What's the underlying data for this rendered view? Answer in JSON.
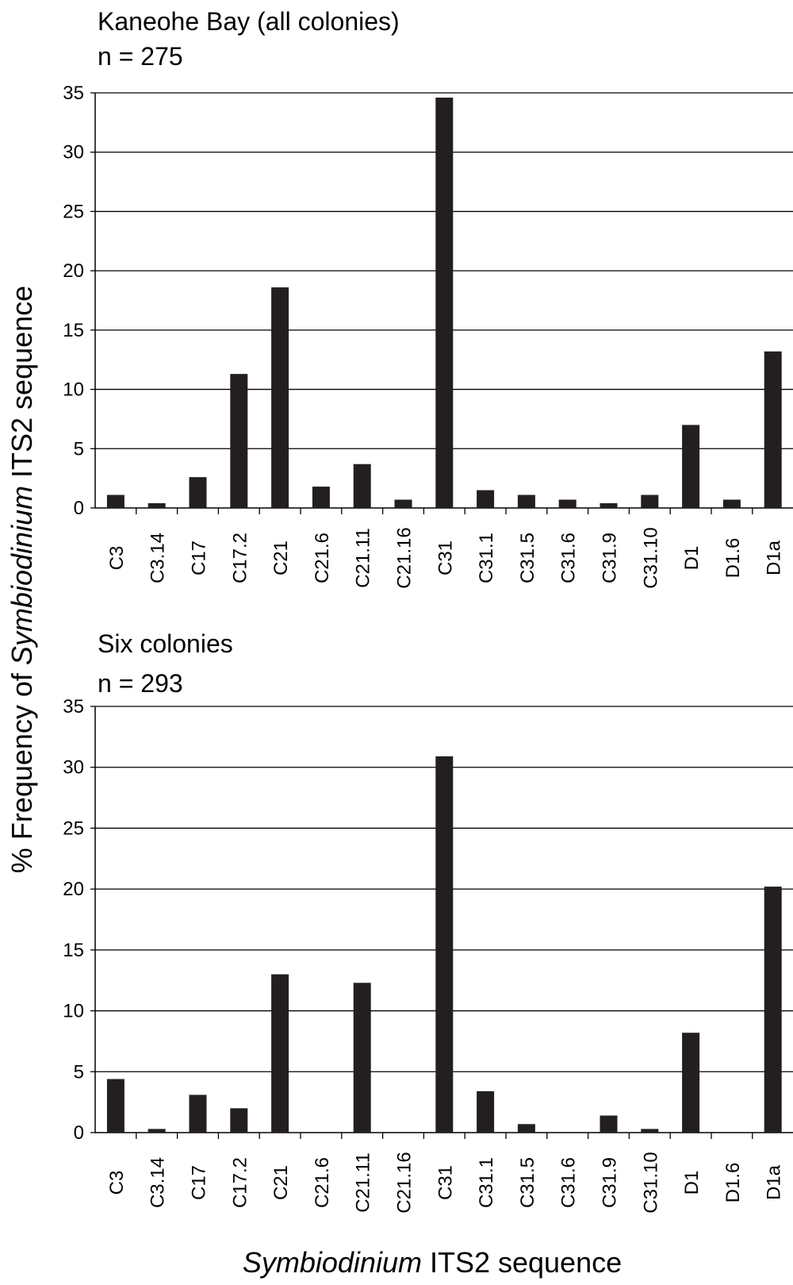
{
  "chart_data": [
    {
      "type": "bar",
      "title": "Kaneohe Bay (all colonies)",
      "subtitle": "n = 275",
      "categories": [
        "C3",
        "C3.14",
        "C17",
        "C17.2",
        "C21",
        "C21.6",
        "C21.11",
        "C21.16",
        "C31",
        "C31.1",
        "C31.5",
        "C31.6",
        "C31.9",
        "C31.10",
        "D1",
        "D1.6",
        "D1a"
      ],
      "values": [
        1.1,
        0.4,
        2.6,
        11.3,
        18.6,
        1.8,
        3.7,
        0.7,
        34.6,
        1.5,
        1.1,
        0.7,
        0.4,
        1.1,
        7.0,
        0.7,
        13.2
      ],
      "ylim": [
        0,
        35
      ],
      "yticks": [
        0,
        5,
        10,
        15,
        20,
        25,
        30,
        35
      ],
      "grid": true,
      "bar_color": "#231f20"
    },
    {
      "type": "bar",
      "title": "Six colonies",
      "subtitle": "n = 293",
      "categories": [
        "C3",
        "C3.14",
        "C17",
        "C17.2",
        "C21",
        "C21.6",
        "C21.11",
        "C21.16",
        "C31",
        "C31.1",
        "C31.5",
        "C31.6",
        "C31.9",
        "C31.10",
        "D1",
        "D1.6",
        "D1a"
      ],
      "values": [
        4.4,
        0.3,
        3.1,
        2.0,
        13.0,
        0,
        12.3,
        0,
        30.9,
        3.4,
        0.7,
        0,
        1.4,
        0.3,
        8.2,
        0,
        20.2
      ],
      "ylim": [
        0,
        35
      ],
      "yticks": [
        0,
        5,
        10,
        15,
        20,
        25,
        30,
        35
      ],
      "grid": true,
      "bar_color": "#231f20"
    }
  ],
  "axes": {
    "ylabel_prefix": "% Frequency of ",
    "ylabel_italic": "Symbiodinium",
    "ylabel_suffix": " ITS2 sequence",
    "xlabel_italic": "Symbiodinium",
    "xlabel_suffix": " ITS2 sequence"
  }
}
